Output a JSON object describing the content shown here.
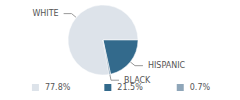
{
  "chart_data": {
    "type": "pie",
    "categories": [
      "WHITE",
      "HISPANIC",
      "BLACK"
    ],
    "values": [
      77.8,
      21.5,
      0.7
    ],
    "value_labels": [
      "77.8%",
      "21.5%",
      "0.7%"
    ],
    "colors": [
      "#dde3ea",
      "#336a8c",
      "#8fa6b9"
    ],
    "legend": "bottom"
  }
}
